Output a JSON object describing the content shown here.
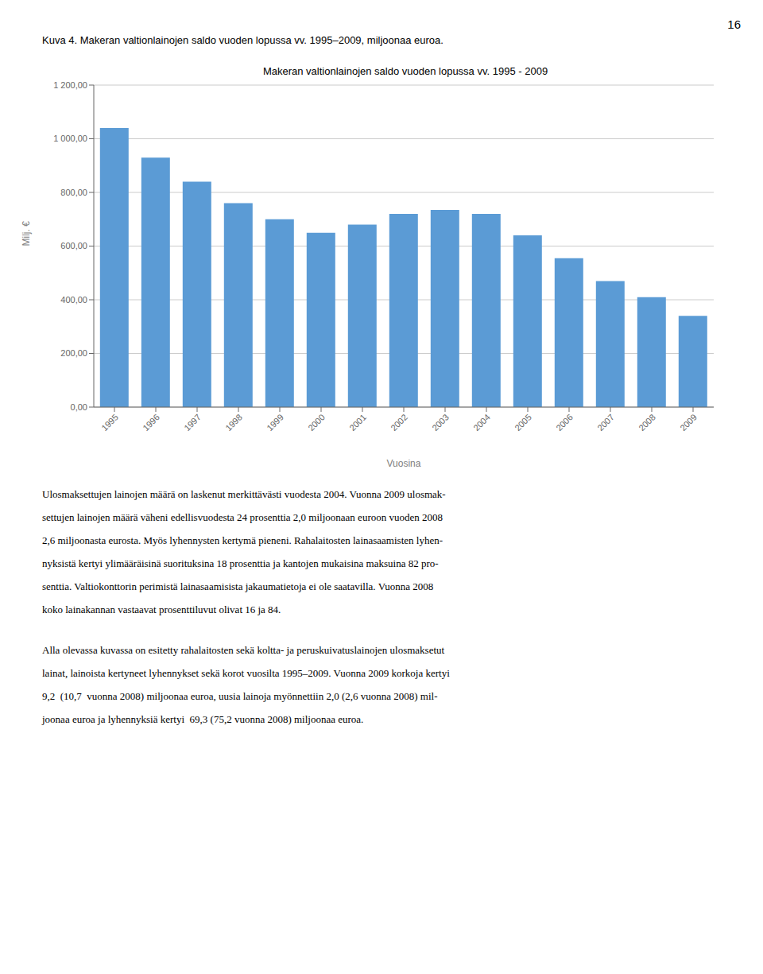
{
  "chart_data": {
    "type": "bar",
    "title": "Makeran valtionlainojen saldo vuoden lopussa vv. 1995 - 2009",
    "xlabel": "Vuosina",
    "ylabel": "Milj. €",
    "categories": [
      "1995",
      "1996",
      "1997",
      "1998",
      "1999",
      "2000",
      "2001",
      "2002",
      "2003",
      "2004",
      "2005",
      "2006",
      "2007",
      "2008",
      "2009"
    ],
    "values": [
      1040,
      930,
      840,
      760,
      700,
      650,
      680,
      720,
      735,
      720,
      640,
      555,
      470,
      410,
      340
    ],
    "color": "#5B9BD5",
    "ylim": [
      0,
      1200
    ],
    "yticks": [
      {
        "value": 0,
        "label": "0,00"
      },
      {
        "value": 200,
        "label": "200,00"
      },
      {
        "value": 400,
        "label": "400,00"
      },
      {
        "value": 600,
        "label": "600,00"
      },
      {
        "value": 800,
        "label": "800,00"
      },
      {
        "value": 1000,
        "label": "1 000,00"
      },
      {
        "value": 1200,
        "label": "1 200,00"
      }
    ],
    "grid": true,
    "page_number": "16",
    "caption": "Kuva 4. Makeran valtionlainojen saldo vuoden lopussa vv. 1995–2009, miljoonaa euroa.",
    "body_text": [
      [
        "Ulosmaksettujen lainojen määrä on laskenut merkittävästi vuodesta 2004. Vuonna 2009 ulosmak-",
        "settujen lainojen määrä väheni edellisvuodesta 24 prosenttia 2,0 miljoonaan euroon vuoden 2008",
        "2,6 miljoonasta eurosta. Myös lyhennysten kertymä pieneni. Rahalaitosten lainasaamisten lyhen-",
        "nyksistä kertyi ylimääräisinä suorituksina 18 prosenttia ja kantojen mukaisina maksuina 82 pro-",
        "senttia. Valtiokonttorin perimistä lainasaamisista jakaumatietoja ei ole saatavilla. Vuonna 2008",
        "koko lainakannan vastaavat prosenttiluvut olivat 16 ja 84."
      ],
      [
        "Alla olevassa kuvassa on esitetty rahalaitosten sekä koltta- ja peruskuivatuslainojen ulosmaksetut",
        "lainat, lainoista kertyneet lyhennykset sekä korot vuosilta 1995–2009. Vuonna 2009 korkoja kertyi",
        "9,2  (10,7  vuonna 2008) miljoonaa euroa, uusia lainoja myönnettiin 2,0 (2,6 vuonna 2008) mil-",
        "joonaa euroa ja lyhennyksiä kertyi  69,3 (75,2 vuonna 2008) miljoonaa euroa."
      ]
    ]
  }
}
